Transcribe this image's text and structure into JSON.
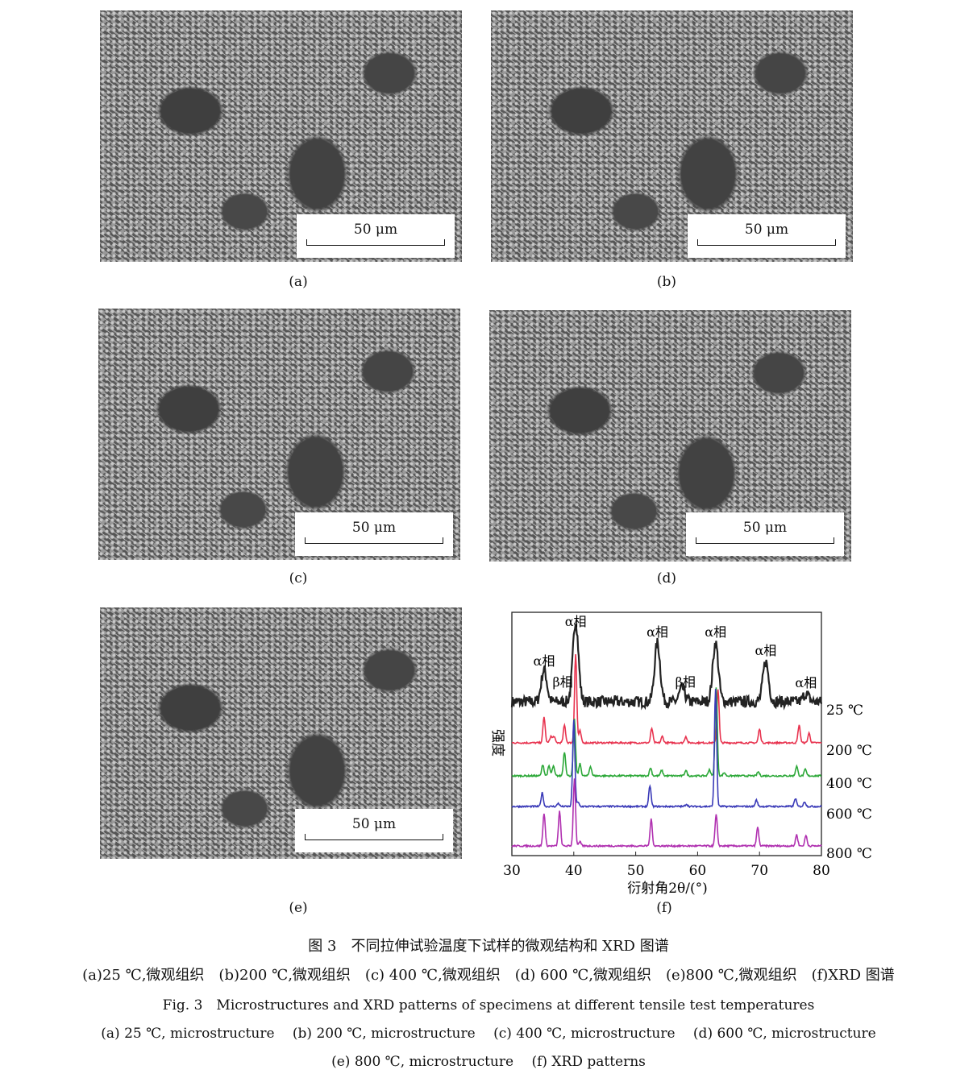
{
  "panels": [
    {
      "label": "(a)",
      "scale": "50 μm"
    },
    {
      "label": "(b)",
      "scale": "50 μm"
    },
    {
      "label": "(c)",
      "scale": "50 μm"
    },
    {
      "label": "(d)",
      "scale": "50 μm"
    },
    {
      "label": "(e)",
      "scale": "50 μm"
    },
    {
      "label": "(f)"
    }
  ],
  "chart_data": {
    "type": "line",
    "xlabel": "衍射角2θ/(°)",
    "ylabel": "强度",
    "xlim": [
      30,
      80
    ],
    "xticks": [
      30,
      40,
      50,
      60,
      70,
      80
    ],
    "grid": false,
    "series": [
      {
        "name": "25 ℃",
        "color": "#222222",
        "noisy": true,
        "peaks": [
          [
            35.2,
            40
          ],
          [
            40.3,
            100
          ],
          [
            53.5,
            73
          ],
          [
            57.5,
            17
          ],
          [
            62.9,
            73
          ],
          [
            71,
            50
          ],
          [
            77.5,
            10
          ]
        ]
      },
      {
        "name": "200 ℃",
        "color": "#e8334f",
        "peaks": [
          [
            35.2,
            32
          ],
          [
            36.3,
            8
          ],
          [
            36.8,
            8
          ],
          [
            38.5,
            22
          ],
          [
            40.3,
            110
          ],
          [
            41,
            15
          ],
          [
            52.6,
            18
          ],
          [
            54.3,
            8
          ],
          [
            58.1,
            8
          ],
          [
            63.3,
            67
          ],
          [
            70,
            17
          ],
          [
            76.4,
            22
          ],
          [
            78,
            12
          ]
        ]
      },
      {
        "name": "400 ℃",
        "color": "#2ca838",
        "peaks": [
          [
            35,
            14
          ],
          [
            36,
            12
          ],
          [
            36.7,
            12
          ],
          [
            38.5,
            30
          ],
          [
            40.1,
            70
          ],
          [
            41,
            15
          ],
          [
            42.7,
            12
          ],
          [
            52.4,
            10
          ],
          [
            54.2,
            7
          ],
          [
            58.1,
            7
          ],
          [
            61.9,
            8
          ],
          [
            63,
            110
          ],
          [
            64.3,
            4
          ],
          [
            69.8,
            5
          ],
          [
            76,
            12
          ],
          [
            77.4,
            8
          ]
        ]
      },
      {
        "name": "600 ℃",
        "color": "#3a3ab8",
        "peaks": [
          [
            34.9,
            17
          ],
          [
            37.5,
            4
          ],
          [
            40,
            107
          ],
          [
            40.7,
            5
          ],
          [
            52.3,
            26
          ],
          [
            58.2,
            3
          ],
          [
            62.9,
            146
          ],
          [
            69.5,
            8
          ],
          [
            75.8,
            10
          ],
          [
            77.3,
            6
          ]
        ]
      },
      {
        "name": "800 ℃",
        "color": "#b030b0",
        "peaks": [
          [
            35.2,
            41
          ],
          [
            37.7,
            43
          ],
          [
            40.1,
            84
          ],
          [
            41,
            5
          ],
          [
            52.5,
            33
          ],
          [
            63,
            39
          ],
          [
            69.7,
            23
          ],
          [
            76,
            14
          ],
          [
            77.5,
            13
          ]
        ]
      }
    ],
    "annotations": [
      {
        "text": "α相",
        "x": 35.2
      },
      {
        "text": "β相",
        "x": 37.7
      },
      {
        "text": "α相",
        "x": 40.3
      },
      {
        "text": "α相",
        "x": 53.5
      },
      {
        "text": "β相",
        "x": 57.5
      },
      {
        "text": "α相",
        "x": 62.9
      },
      {
        "text": "α相",
        "x": 71
      },
      {
        "text": "α相",
        "x": 77.5
      }
    ]
  },
  "caption": {
    "cn_title": "图 3　不同拉伸试验温度下试样的微观结构和 XRD 图谱",
    "cn_sub": "(a)25 ℃,微观组织　(b)200 ℃,微观组织　(c) 400 ℃,微观组织　(d) 600 ℃,微观组织　(e)800 ℃,微观组织　(f)XRD 图谱",
    "en_title": "Fig. 3　Microstructures and XRD patterns of specimens at different tensile test temperatures",
    "en_sub1": "(a) 25 ℃, microstructure　 (b) 200 ℃, microstructure　 (c) 400 ℃, microstructure　 (d) 600 ℃, microstructure",
    "en_sub2": "(e) 800 ℃, microstructure　 (f) XRD patterns"
  }
}
